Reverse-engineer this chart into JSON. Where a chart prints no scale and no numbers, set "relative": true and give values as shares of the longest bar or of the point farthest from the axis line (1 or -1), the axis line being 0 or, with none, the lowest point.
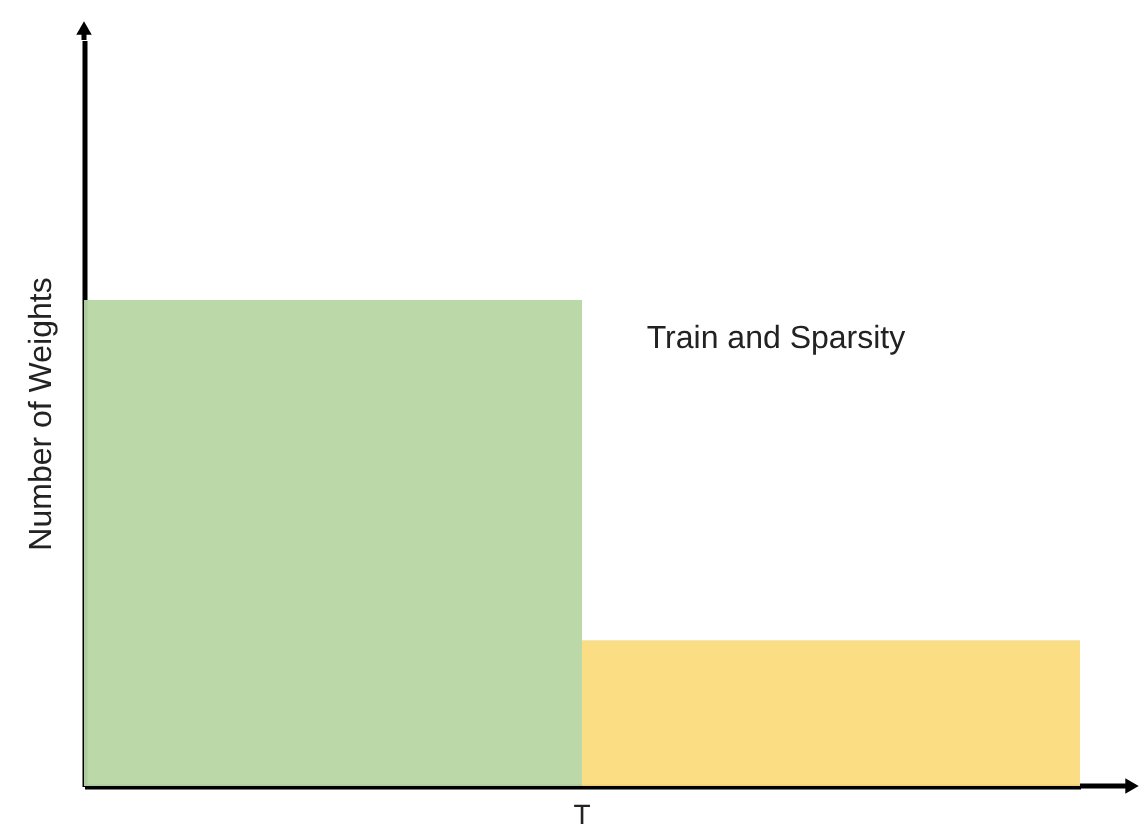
{
  "chart_data": {
    "type": "bar",
    "relative": true,
    "ylabel": "Number of Weights",
    "categories": [
      null,
      null
    ],
    "series": [
      {
        "values": [
          1,
          0.3
        ],
        "colors": [
          "#b7d7a3",
          "#fbdc7d"
        ]
      }
    ],
    "annotations": [
      "Train and Sparsity",
      "T"
    ],
    "grid": false,
    "tick_labels": false
  }
}
